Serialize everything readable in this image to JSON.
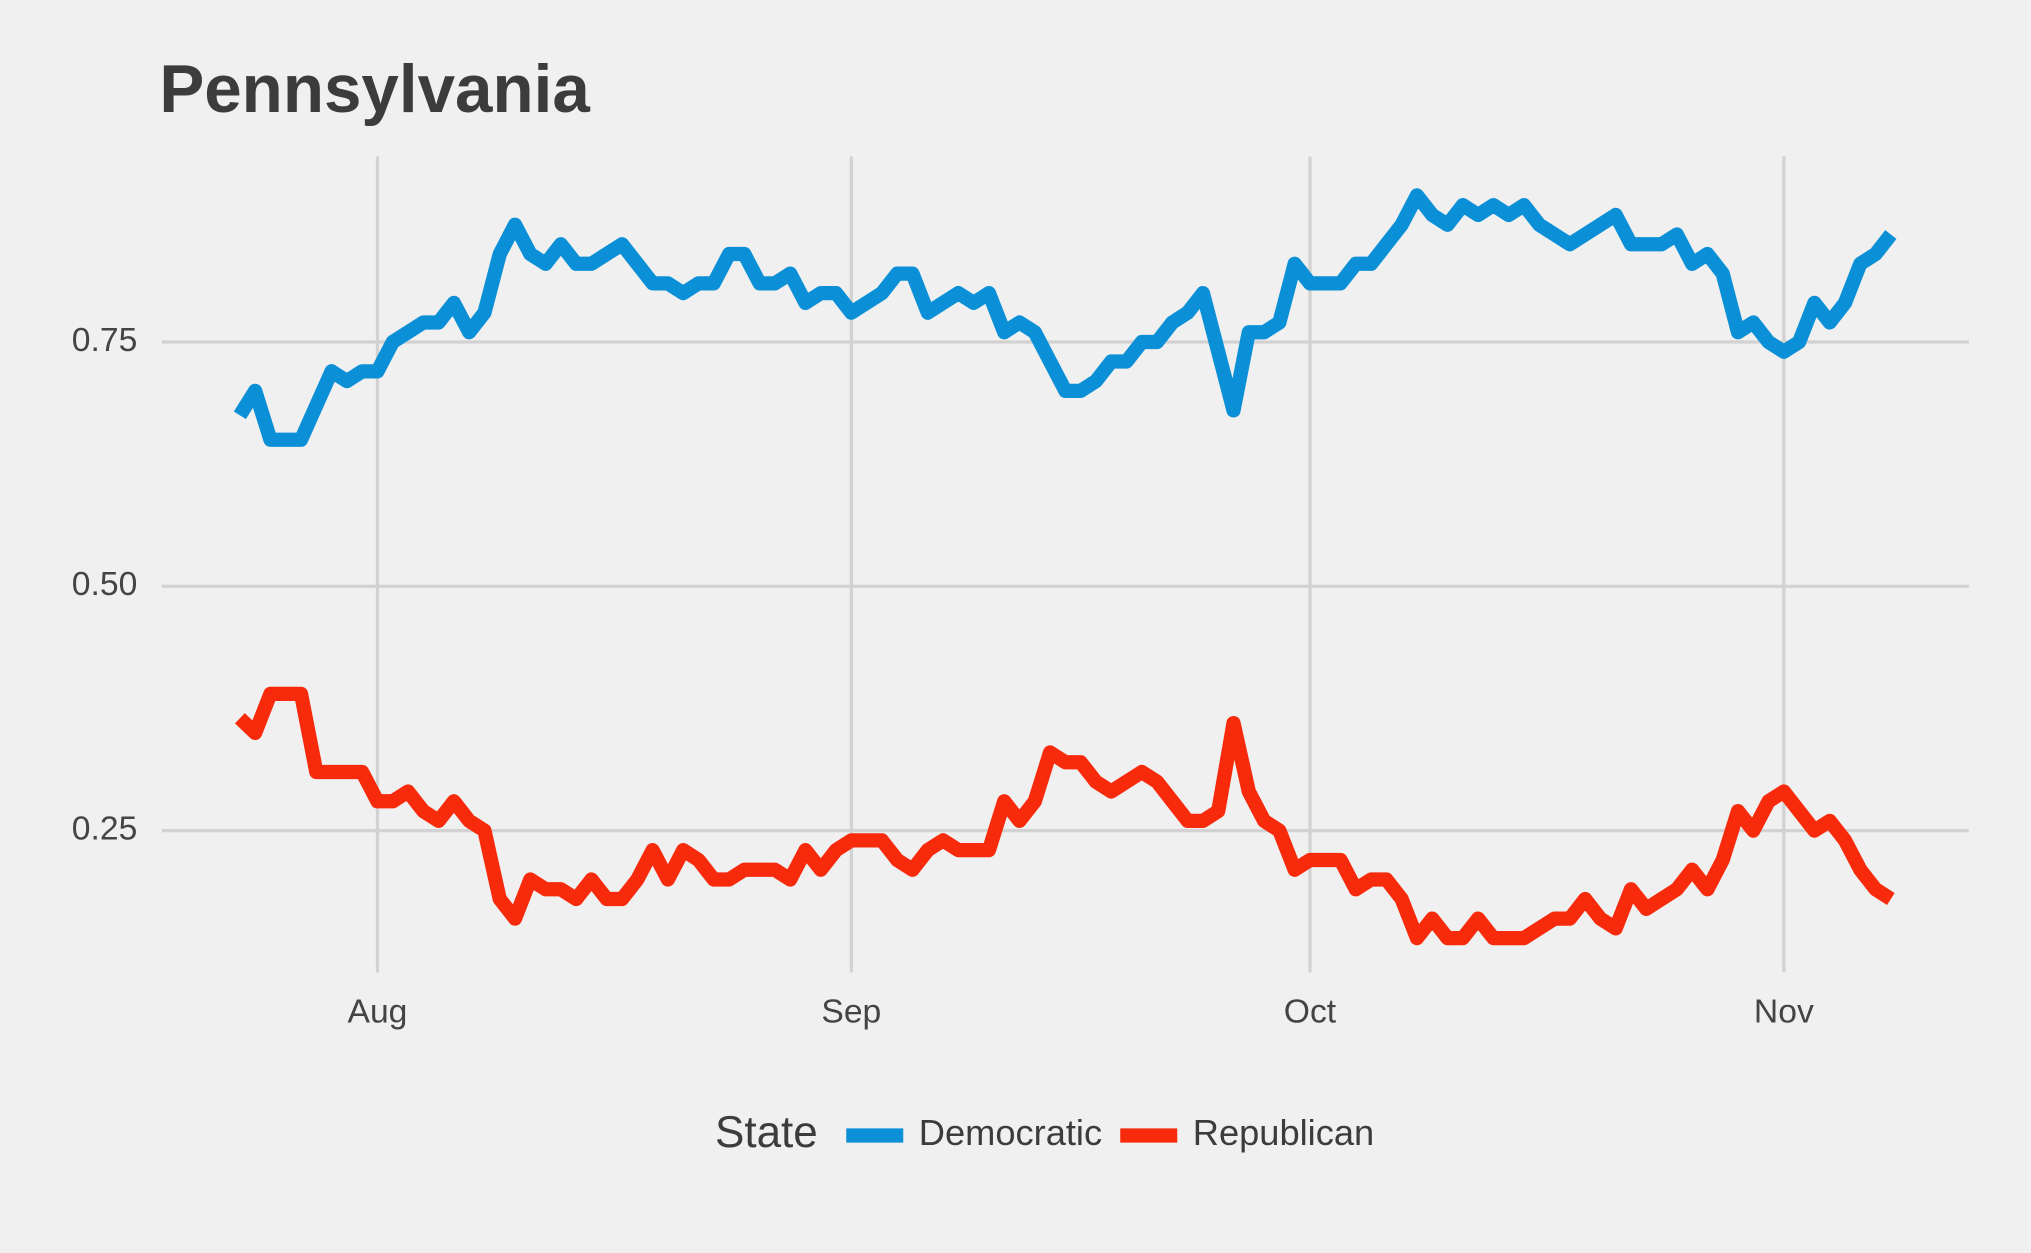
{
  "chart_data": {
    "type": "line",
    "title": "Pennsylvania",
    "categories": [
      null,
      null,
      null,
      null,
      null,
      null,
      null,
      null,
      null,
      "Aug",
      null,
      null,
      null,
      null,
      null,
      null,
      null,
      null,
      null,
      null,
      null,
      null,
      null,
      null,
      null,
      null,
      null,
      null,
      null,
      null,
      null,
      null,
      null,
      null,
      null,
      null,
      null,
      null,
      null,
      null,
      "Sep",
      null,
      null,
      null,
      null,
      null,
      null,
      null,
      null,
      null,
      null,
      null,
      null,
      null,
      null,
      null,
      null,
      null,
      null,
      null,
      null,
      null,
      null,
      null,
      null,
      null,
      null,
      null,
      null,
      null,
      "Oct",
      null,
      null,
      null,
      null,
      null,
      null,
      null,
      null,
      null,
      null,
      null,
      null,
      null,
      null,
      null,
      null,
      null,
      null,
      null,
      null,
      null,
      null,
      null,
      null,
      null,
      null,
      null,
      null,
      null,
      null,
      "Nov",
      null,
      null,
      null,
      null,
      null,
      null,
      null
    ],
    "series": [
      {
        "name": "Democratic",
        "color": "#0b8fd6",
        "values": [
          0.675,
          0.7,
          0.65,
          0.65,
          0.65,
          0.685,
          0.72,
          0.71,
          0.72,
          0.72,
          0.75,
          0.76,
          0.77,
          0.77,
          0.79,
          0.76,
          0.78,
          0.84,
          0.87,
          0.84,
          0.83,
          0.85,
          0.83,
          0.83,
          0.84,
          0.85,
          0.83,
          0.81,
          0.81,
          0.8,
          0.81,
          0.81,
          0.84,
          0.84,
          0.81,
          0.81,
          0.82,
          0.79,
          0.8,
          0.8,
          0.78,
          0.79,
          0.8,
          0.82,
          0.82,
          0.78,
          0.79,
          0.8,
          0.79,
          0.8,
          0.76,
          0.77,
          0.76,
          0.73,
          0.7,
          0.7,
          0.71,
          0.73,
          0.73,
          0.75,
          0.75,
          0.77,
          0.78,
          0.8,
          0.74,
          0.68,
          0.76,
          0.76,
          0.77,
          0.83,
          0.81,
          0.81,
          0.81,
          0.83,
          0.83,
          0.85,
          0.87,
          0.9,
          0.88,
          0.87,
          0.89,
          0.88,
          0.89,
          0.88,
          0.89,
          0.87,
          0.86,
          0.85,
          0.86,
          0.87,
          0.88,
          0.85,
          0.85,
          0.85,
          0.86,
          0.83,
          0.84,
          0.82,
          0.76,
          0.77,
          0.75,
          0.74,
          0.75,
          0.79,
          0.77,
          0.79,
          0.83,
          0.84,
          0.86
        ]
      },
      {
        "name": "Republican",
        "color": "#f72a0c",
        "values": [
          0.365,
          0.35,
          0.39,
          0.39,
          0.39,
          0.31,
          0.31,
          0.31,
          0.31,
          0.28,
          0.28,
          0.29,
          0.27,
          0.26,
          0.28,
          0.26,
          0.25,
          0.18,
          0.16,
          0.2,
          0.19,
          0.19,
          0.18,
          0.2,
          0.18,
          0.18,
          0.2,
          0.23,
          0.2,
          0.23,
          0.22,
          0.2,
          0.2,
          0.21,
          0.21,
          0.21,
          0.2,
          0.23,
          0.21,
          0.23,
          0.24,
          0.24,
          0.24,
          0.22,
          0.21,
          0.23,
          0.24,
          0.23,
          0.23,
          0.23,
          0.28,
          0.26,
          0.28,
          0.33,
          0.32,
          0.32,
          0.3,
          0.29,
          0.3,
          0.31,
          0.3,
          0.28,
          0.26,
          0.26,
          0.27,
          0.36,
          0.29,
          0.26,
          0.25,
          0.21,
          0.22,
          0.22,
          0.22,
          0.19,
          0.2,
          0.2,
          0.18,
          0.14,
          0.16,
          0.14,
          0.14,
          0.16,
          0.14,
          0.14,
          0.14,
          0.15,
          0.16,
          0.16,
          0.18,
          0.16,
          0.15,
          0.19,
          0.17,
          0.18,
          0.19,
          0.21,
          0.19,
          0.22,
          0.27,
          0.25,
          0.28,
          0.29,
          0.27,
          0.25,
          0.26,
          0.24,
          0.21,
          0.19,
          0.18
        ]
      }
    ],
    "ylim": [
      0.105,
      0.94
    ],
    "yticks": [
      0.25,
      {
        "value": 0.5,
        "label": "0.50"
      },
      0.75
    ],
    "grid": true,
    "legend_title": "State",
    "legend_position": "bottom"
  }
}
